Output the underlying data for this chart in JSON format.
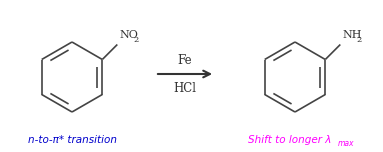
{
  "background_color": "#ffffff",
  "figsize": [
    3.83,
    1.52
  ],
  "dpi": 100,
  "ring_color": "#444444",
  "ring_linewidth": 1.2,
  "arrow_color": "#333333",
  "label_color_left": "#0000cc",
  "label_color_right": "#ff00ff",
  "fe_label": "Fe",
  "hcl_label": "HCl",
  "left_annotation": "n-to-π* transition",
  "right_annotation_main": "Shift to longer λ",
  "right_annotation_sub": "max"
}
